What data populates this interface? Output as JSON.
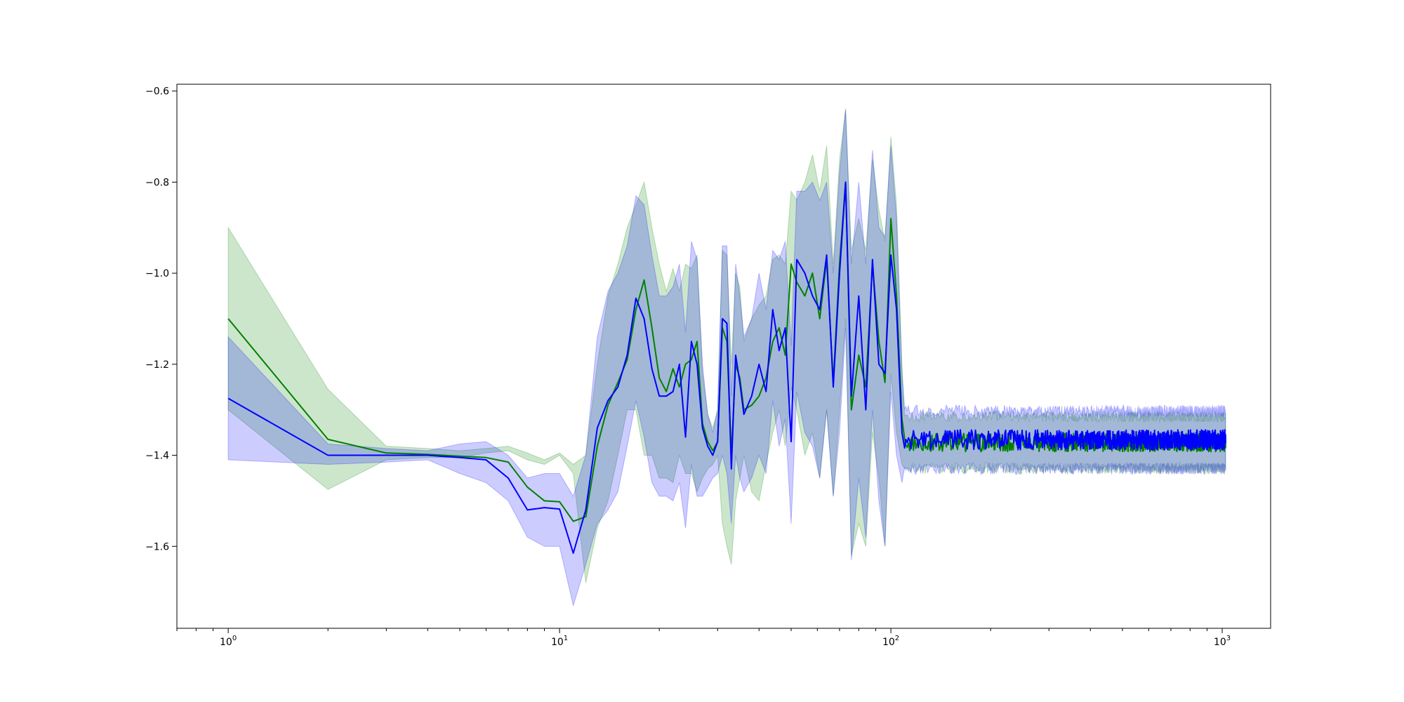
{
  "chart_data": {
    "type": "line",
    "title": "",
    "xlabel": "",
    "ylabel": "",
    "x_scale": "log",
    "xlim": [
      0.7,
      1400
    ],
    "ylim": [
      -1.78,
      -0.585
    ],
    "grid": false,
    "legend": null,
    "x_ticks": [
      {
        "value": 1,
        "base": "10",
        "exp": "0"
      },
      {
        "value": 10,
        "base": "10",
        "exp": "1"
      },
      {
        "value": 100,
        "base": "10",
        "exp": "2"
      },
      {
        "value": 1000,
        "base": "10",
        "exp": "3"
      }
    ],
    "y_ticks": [
      {
        "value": -0.6,
        "label": "−0.6"
      },
      {
        "value": -0.8,
        "label": "−0.8"
      },
      {
        "value": -1.0,
        "label": "−1.0"
      },
      {
        "value": -1.2,
        "label": "−1.2"
      },
      {
        "value": -1.4,
        "label": "−1.4"
      },
      {
        "value": -1.6,
        "label": "−1.6"
      }
    ],
    "series": [
      {
        "color": "#008000",
        "band_color": "#008000",
        "band_opacity": 0.2,
        "x": [
          1,
          2,
          3,
          4,
          5,
          6,
          7,
          8,
          9,
          10,
          11,
          12,
          13,
          14,
          15,
          16,
          17,
          18,
          19,
          20,
          21,
          22,
          23,
          24,
          25,
          26,
          27,
          28,
          29,
          30,
          31,
          32,
          33,
          34,
          35,
          36,
          38,
          40,
          42,
          44,
          46,
          48,
          50,
          52,
          55,
          58,
          61,
          64,
          67,
          70,
          73,
          76,
          80,
          84,
          88,
          92,
          96,
          100,
          104,
          108
        ],
        "y": [
          -1.1,
          -1.365,
          -1.395,
          -1.398,
          -1.402,
          -1.405,
          -1.415,
          -1.47,
          -1.5,
          -1.502,
          -1.545,
          -1.535,
          -1.38,
          -1.29,
          -1.24,
          -1.19,
          -1.08,
          -1.015,
          -1.12,
          -1.23,
          -1.26,
          -1.21,
          -1.25,
          -1.2,
          -1.19,
          -1.15,
          -1.33,
          -1.37,
          -1.39,
          -1.37,
          -1.12,
          -1.15,
          -1.4,
          -1.2,
          -1.23,
          -1.3,
          -1.29,
          -1.27,
          -1.23,
          -1.15,
          -1.12,
          -1.18,
          -0.98,
          -1.02,
          -1.05,
          -1.0,
          -1.1,
          -0.97,
          -1.24,
          -0.98,
          -0.8,
          -1.3,
          -1.18,
          -1.25,
          -0.98,
          -1.15,
          -1.24,
          -0.88,
          -1.05,
          -1.32
        ],
        "lower": [
          -1.3,
          -1.475,
          -1.41,
          -1.405,
          -1.405,
          -1.395,
          -1.39,
          -1.41,
          -1.42,
          -1.4,
          -1.44,
          -1.68,
          -1.56,
          -1.5,
          -1.4,
          -1.3,
          -1.3,
          -1.4,
          -1.4,
          -1.45,
          -1.45,
          -1.46,
          -1.4,
          -1.44,
          -1.44,
          -1.48,
          -1.45,
          -1.43,
          -1.42,
          -1.4,
          -1.55,
          -1.6,
          -1.64,
          -1.5,
          -1.45,
          -1.4,
          -1.48,
          -1.5,
          -1.42,
          -1.35,
          -1.3,
          -1.38,
          -1.25,
          -1.3,
          -1.4,
          -1.35,
          -1.45,
          -1.3,
          -1.49,
          -1.3,
          -1.1,
          -1.62,
          -1.55,
          -1.6,
          -1.35,
          -1.45,
          -1.6,
          -1.22,
          -1.35,
          -1.42
        ],
        "upper": [
          -0.9,
          -1.255,
          -1.38,
          -1.385,
          -1.39,
          -1.385,
          -1.38,
          -1.395,
          -1.41,
          -1.395,
          -1.42,
          -1.4,
          -1.2,
          -1.05,
          -0.98,
          -0.9,
          -0.85,
          -0.8,
          -0.9,
          -0.98,
          -1.04,
          -0.99,
          -1.04,
          -0.98,
          -0.99,
          -0.96,
          -1.22,
          -1.31,
          -1.34,
          -1.3,
          -0.95,
          -0.96,
          -1.2,
          -1.0,
          -1.03,
          -1.15,
          -1.1,
          -1.07,
          -1.05,
          -0.97,
          -0.96,
          -0.98,
          -0.82,
          -0.84,
          -0.8,
          -0.74,
          -0.82,
          -0.72,
          -0.98,
          -0.75,
          -0.64,
          -0.95,
          -0.88,
          -0.95,
          -0.75,
          -0.86,
          -0.93,
          -0.7,
          -0.85,
          -1.2
        ],
        "tail": {
          "x_start": 110,
          "x_end": 1024,
          "mean": -1.372,
          "spread": 0.045,
          "jitter": 0.02
        }
      },
      {
        "color": "#0000ff",
        "band_color": "#0000ff",
        "band_opacity": 0.2,
        "x": [
          1,
          2,
          3,
          4,
          5,
          6,
          7,
          8,
          9,
          10,
          11,
          12,
          13,
          14,
          15,
          16,
          17,
          18,
          19,
          20,
          21,
          22,
          23,
          24,
          25,
          26,
          27,
          28,
          29,
          30,
          31,
          32,
          33,
          34,
          35,
          36,
          38,
          40,
          42,
          44,
          46,
          48,
          50,
          52,
          55,
          58,
          61,
          64,
          67,
          70,
          73,
          76,
          80,
          84,
          88,
          92,
          96,
          100,
          104,
          108
        ],
        "y": [
          -1.275,
          -1.4,
          -1.4,
          -1.4,
          -1.405,
          -1.41,
          -1.45,
          -1.52,
          -1.515,
          -1.518,
          -1.615,
          -1.52,
          -1.34,
          -1.28,
          -1.25,
          -1.18,
          -1.055,
          -1.1,
          -1.21,
          -1.27,
          -1.27,
          -1.26,
          -1.2,
          -1.36,
          -1.15,
          -1.2,
          -1.34,
          -1.38,
          -1.4,
          -1.37,
          -1.1,
          -1.11,
          -1.43,
          -1.18,
          -1.24,
          -1.31,
          -1.27,
          -1.2,
          -1.26,
          -1.08,
          -1.17,
          -1.12,
          -1.37,
          -0.97,
          -1.0,
          -1.05,
          -1.08,
          -0.96,
          -1.25,
          -1.0,
          -0.8,
          -1.27,
          -1.05,
          -1.3,
          -0.97,
          -1.2,
          -1.22,
          -0.96,
          -1.08,
          -1.35
        ],
        "lower": [
          -1.41,
          -1.42,
          -1.415,
          -1.41,
          -1.44,
          -1.46,
          -1.5,
          -1.58,
          -1.6,
          -1.6,
          -1.73,
          -1.64,
          -1.55,
          -1.52,
          -1.48,
          -1.38,
          -1.28,
          -1.36,
          -1.46,
          -1.49,
          -1.49,
          -1.5,
          -1.46,
          -1.56,
          -1.42,
          -1.49,
          -1.49,
          -1.47,
          -1.45,
          -1.44,
          -1.4,
          -1.44,
          -1.55,
          -1.4,
          -1.45,
          -1.48,
          -1.45,
          -1.4,
          -1.44,
          -1.28,
          -1.38,
          -1.32,
          -1.55,
          -1.26,
          -1.35,
          -1.38,
          -1.45,
          -1.3,
          -1.49,
          -1.35,
          -1.12,
          -1.63,
          -1.45,
          -1.58,
          -1.3,
          -1.5,
          -1.6,
          -1.26,
          -1.4,
          -1.46
        ],
        "upper": [
          -1.14,
          -1.375,
          -1.385,
          -1.39,
          -1.375,
          -1.37,
          -1.4,
          -1.45,
          -1.44,
          -1.44,
          -1.49,
          -1.4,
          -1.14,
          -1.04,
          -1.0,
          -0.94,
          -0.83,
          -0.85,
          -0.96,
          -1.05,
          -1.05,
          -1.03,
          -0.98,
          -1.13,
          -0.93,
          -0.97,
          -1.2,
          -1.31,
          -1.35,
          -1.3,
          -0.94,
          -0.94,
          -1.27,
          -0.98,
          -1.05,
          -1.14,
          -1.1,
          -1.0,
          -1.08,
          -0.95,
          -0.97,
          -0.93,
          -1.16,
          -0.82,
          -0.82,
          -0.8,
          -0.84,
          -0.8,
          -1.0,
          -0.78,
          -0.64,
          -0.98,
          -0.8,
          -0.98,
          -0.73,
          -0.9,
          -0.92,
          -0.72,
          -0.88,
          -1.22
        ],
        "tail": {
          "x_start": 110,
          "x_end": 1024,
          "mean": -1.366,
          "spread": 0.05,
          "jitter": 0.022
        }
      }
    ]
  }
}
